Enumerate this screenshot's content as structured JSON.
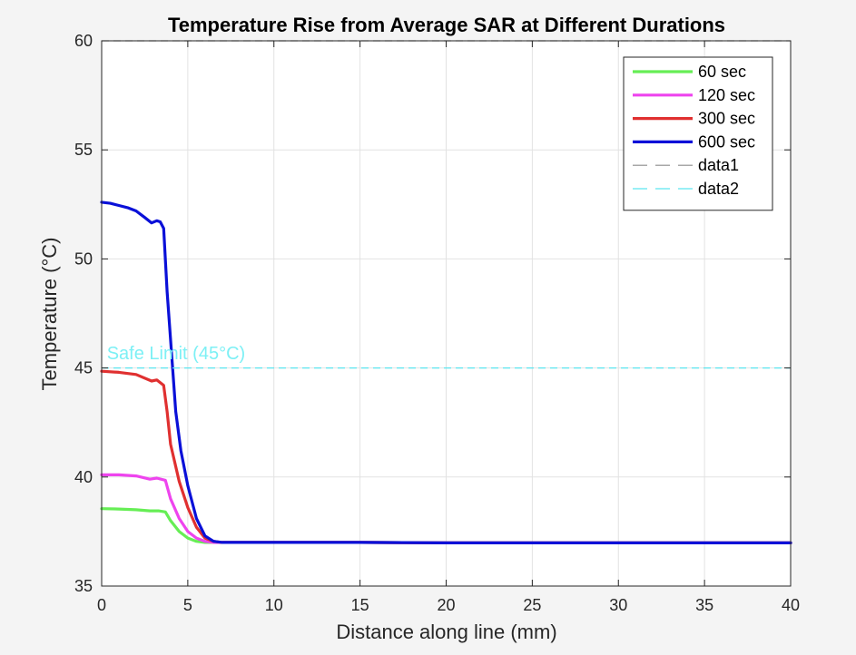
{
  "chart_data": {
    "type": "line",
    "title": "Temperature Rise from Average SAR at Different Durations",
    "xlabel": "Distance along line (mm)",
    "ylabel": "Temperature (°C)",
    "xlim": [
      0,
      40
    ],
    "ylim": [
      35,
      60
    ],
    "xticks": [
      "0",
      "5",
      "10",
      "15",
      "20",
      "25",
      "30",
      "35",
      "40"
    ],
    "yticks": [
      "35",
      "40",
      "45",
      "50",
      "55",
      "60"
    ],
    "grid": true,
    "legend_position": "top-right",
    "series": [
      {
        "name": "60 sec",
        "color": "#66ee55",
        "style": "solid",
        "x": [
          0,
          1,
          2,
          2.8,
          3.3,
          3.7,
          4,
          4.5,
          5,
          5.5,
          6,
          6.5,
          7,
          8,
          10,
          15,
          20,
          30,
          40
        ],
        "y": [
          38.55,
          38.53,
          38.5,
          38.45,
          38.45,
          38.4,
          38.0,
          37.5,
          37.2,
          37.05,
          37.0,
          37.0,
          37.0,
          37.0,
          37.0,
          37.0,
          36.98,
          36.98,
          36.98
        ]
      },
      {
        "name": "120 sec",
        "color": "#ee44ee",
        "style": "solid",
        "x": [
          0,
          1,
          2,
          2.8,
          3.2,
          3.7,
          4,
          4.5,
          5,
          5.5,
          6,
          6.5,
          7,
          8,
          10,
          15,
          20,
          30,
          40
        ],
        "y": [
          40.1,
          40.1,
          40.05,
          39.9,
          39.95,
          39.85,
          39.0,
          38.1,
          37.5,
          37.2,
          37.05,
          37.0,
          37.0,
          37.0,
          37.0,
          37.0,
          36.98,
          36.98,
          36.98
        ]
      },
      {
        "name": "300 sec",
        "color": "#e03030",
        "style": "solid",
        "x": [
          0,
          1,
          2,
          2.9,
          3.2,
          3.6,
          3.8,
          4,
          4.5,
          5,
          5.5,
          6,
          6.5,
          7,
          8,
          10,
          15,
          20,
          30,
          40
        ],
        "y": [
          44.85,
          44.8,
          44.7,
          44.4,
          44.45,
          44.2,
          43.0,
          41.5,
          39.8,
          38.6,
          37.7,
          37.2,
          37.05,
          37.0,
          37.0,
          37.0,
          37.0,
          36.98,
          36.98,
          36.98
        ]
      },
      {
        "name": "600 sec",
        "color": "#0a10d8",
        "style": "solid",
        "x": [
          0,
          0.5,
          1,
          1.5,
          2,
          2.5,
          2.9,
          3.2,
          3.4,
          3.6,
          3.8,
          4,
          4.3,
          4.6,
          5,
          5.5,
          6,
          6.5,
          7,
          8,
          10,
          15,
          20,
          30,
          40
        ],
        "y": [
          52.6,
          52.55,
          52.45,
          52.35,
          52.2,
          51.9,
          51.65,
          51.75,
          51.7,
          51.4,
          48.5,
          46.3,
          43.0,
          41.2,
          39.6,
          38.1,
          37.3,
          37.05,
          37.0,
          37.0,
          37.0,
          37.0,
          36.98,
          36.98,
          36.98
        ]
      },
      {
        "name": "data1",
        "color": "#8c8c8c",
        "style": "dashed",
        "x": [
          0,
          40
        ],
        "y": [
          60,
          60
        ]
      },
      {
        "name": "data2",
        "color": "#5ce6f0",
        "style": "dashed",
        "x": [
          0,
          40
        ],
        "y": [
          45,
          45
        ]
      }
    ],
    "annotations": [
      {
        "text": "Safe Limit (45°C)",
        "x": 0.3,
        "y": 45.4,
        "color": "#7df0f5"
      }
    ]
  }
}
